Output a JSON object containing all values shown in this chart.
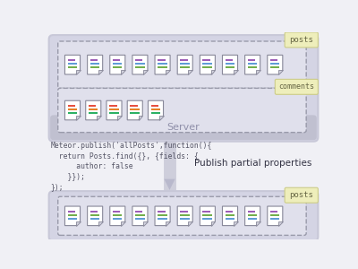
{
  "bg_color": "#f0f0f5",
  "server_box_color": "#c8c8d8",
  "server_fill": "#d4d4e4",
  "server_bar_fill": "#c0c0d0",
  "server_label": "Server",
  "dashed_box_fill": "#e0e0ec",
  "dashed_box_edge": "#999aaa",
  "tag_fill": "#eeeebb",
  "tag_edge": "#cccc88",
  "tag_text_color": "#666644",
  "posts_tag1": "posts",
  "comments_tag": "comments",
  "posts_tag_bottom": "posts",
  "code_lines": [
    "Meteor.publish('allPosts',function(){",
    "  return Posts.find({}, {fields: {",
    "      author: false",
    "    }});",
    "});"
  ],
  "publish_label": "Publish partial properties",
  "arrow_color": "#c0c0d0",
  "doc_colors_posts": [
    "#9b59b6",
    "#5b9bd5",
    "#70ad47"
  ],
  "doc_colors_comments": [
    "#e74c3c",
    "#e67e22",
    "#27ae60"
  ],
  "doc_colors_client": [
    "#9b59b6",
    "#70ad47",
    "#5b9bd5"
  ],
  "n_posts": 10,
  "n_comments": 5,
  "n_client": 10
}
